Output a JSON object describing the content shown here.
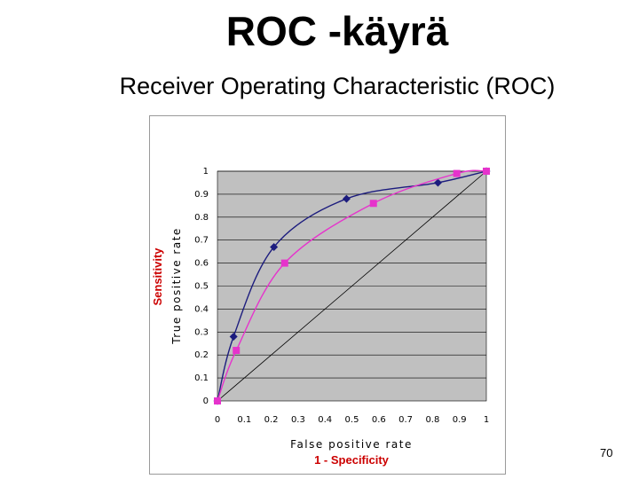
{
  "slide": {
    "title": "ROC -käyrä",
    "subtitle": "Receiver Operating Characteristic (ROC)",
    "page_number": "70"
  },
  "annotations": {
    "y_overlay": "Sensitivity",
    "x_overlay": "1 - Specificity"
  },
  "colors": {
    "plot_bg": "#c0c0c0",
    "series_blue": "#1c1c7e",
    "series_magenta": "#e633cc",
    "diagonal": "#000000",
    "annotation_red": "#cc0000"
  },
  "chart_data": {
    "type": "line",
    "title": "",
    "xlabel": "False positive rate",
    "ylabel": "True positive rate",
    "xlim": [
      0,
      1
    ],
    "ylim": [
      0,
      1
    ],
    "x_ticks": [
      "0",
      "0.1",
      "0.2",
      "0.3",
      "0.4",
      "0.5",
      "0.6",
      "0.7",
      "0.8",
      "0.9",
      "1"
    ],
    "y_ticks": [
      "0",
      "0.1",
      "0.2",
      "0.3",
      "0.4",
      "0.5",
      "0.6",
      "0.7",
      "0.8",
      "0.9",
      "1"
    ],
    "grid": "horizontal",
    "legend": "none",
    "series": [
      {
        "marker": "diamond",
        "color": "#1c1c7e",
        "x": [
          0,
          0.06,
          0.21,
          0.48,
          0.82,
          1
        ],
        "y": [
          0,
          0.28,
          0.67,
          0.88,
          0.95,
          1
        ]
      },
      {
        "marker": "square",
        "color": "#e633cc",
        "x": [
          0,
          0.07,
          0.25,
          0.58,
          0.89,
          1
        ],
        "y": [
          0,
          0.22,
          0.6,
          0.86,
          0.99,
          1
        ]
      }
    ],
    "reference_line": {
      "x": [
        0,
        1
      ],
      "y": [
        0,
        1
      ]
    }
  }
}
